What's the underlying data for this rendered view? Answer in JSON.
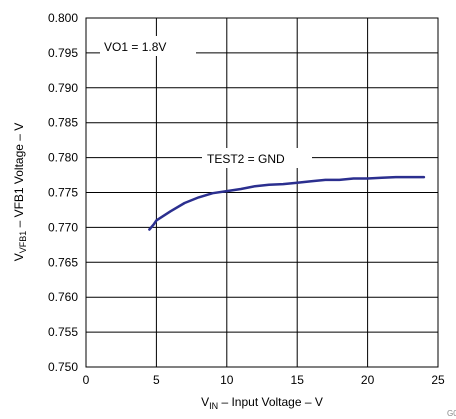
{
  "chart_data": {
    "type": "line",
    "xlabel": {
      "prefix": "V",
      "sub": "IN",
      "suffix": " – Input Voltage – V"
    },
    "ylabel": {
      "prefix": "V",
      "sub": "VFB1",
      "suffix": " – VFB1 Voltage – V"
    },
    "xlim": [
      0,
      25
    ],
    "ylim": [
      0.75,
      0.8
    ],
    "x_ticks": [
      "0",
      "5",
      "10",
      "15",
      "20",
      "25"
    ],
    "y_ticks": [
      "0.750",
      "0.755",
      "0.760",
      "0.765",
      "0.770",
      "0.775",
      "0.780",
      "0.785",
      "0.790",
      "0.795",
      "0.800"
    ],
    "grid": true,
    "line_color": "#2b2f8f",
    "annotations": [
      "VO1 = 1.8V",
      "TEST2 = GND"
    ],
    "footnote": "G0",
    "series": [
      {
        "x": [
          4.5,
          4.8,
          5.0,
          6.0,
          7.0,
          8.0,
          9.0,
          10.0,
          11.0,
          12.0,
          13.0,
          14.0,
          15.0,
          16.0,
          17.0,
          18.0,
          19.0,
          20.0,
          21.0,
          22.0,
          23.0,
          24.0
        ],
        "y": [
          0.7697,
          0.7704,
          0.771,
          0.7723,
          0.7735,
          0.7743,
          0.7749,
          0.7752,
          0.7755,
          0.7759,
          0.7761,
          0.7762,
          0.7764,
          0.7766,
          0.7768,
          0.7768,
          0.777,
          0.777,
          0.7771,
          0.7772,
          0.7772,
          0.7772
        ]
      }
    ]
  }
}
